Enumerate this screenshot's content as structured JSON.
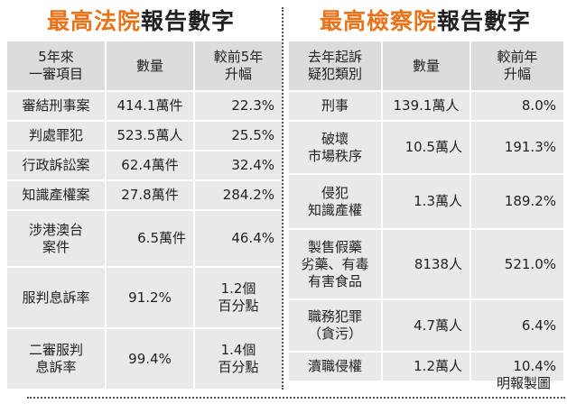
{
  "court": {
    "title_highlight": "最高法院",
    "title_rest": "報告數字",
    "headers": [
      "5年來\n一審項目",
      "數量",
      "較前5年\n升幅"
    ],
    "rows": [
      {
        "item": "審結刑事案",
        "count": "414.1萬件",
        "change": "22.3%"
      },
      {
        "item": "判處罪犯",
        "count": "523.5萬人",
        "change": "25.5%"
      },
      {
        "item": "行政訴訟案",
        "count": "62.4萬件",
        "change": "32.4%"
      },
      {
        "item": "知識產權案",
        "count": "27.8萬件",
        "change": "284.2%"
      },
      {
        "item": "涉港澳台\n案件",
        "count": "6.5萬件",
        "change": "46.4%"
      },
      {
        "item": "服判息訴率",
        "count": "91.2%",
        "change": "1.2個\n百分點"
      },
      {
        "item": "二審服判\n息訴率",
        "count": "99.4%",
        "change": "1.4個\n百分點"
      }
    ]
  },
  "procuratorate": {
    "title_highlight": "最高檢察院",
    "title_rest": "報告數字",
    "headers": [
      "去年起訴\n疑犯類別",
      "數量",
      "較前年\n升幅"
    ],
    "rows": [
      {
        "item": "刑事",
        "count": "139.1萬人",
        "change": "8.0%"
      },
      {
        "item": "破壞\n市場秩序",
        "count": "10.5萬人",
        "change": "191.3%"
      },
      {
        "item": "侵犯\n知識產權",
        "count": "1.3萬人",
        "change": "189.2%"
      },
      {
        "item": "製售假藥\n劣藥、有毒\n有害食品",
        "count": "8138人",
        "change": "521.0%"
      },
      {
        "item": "職務犯罪\n（貪污）",
        "count": "4.7萬人",
        "change": "6.4%"
      },
      {
        "item": "瀆職侵權",
        "count": "1.2萬人",
        "change": "10.4%"
      }
    ]
  },
  "credit": "明報製圖"
}
